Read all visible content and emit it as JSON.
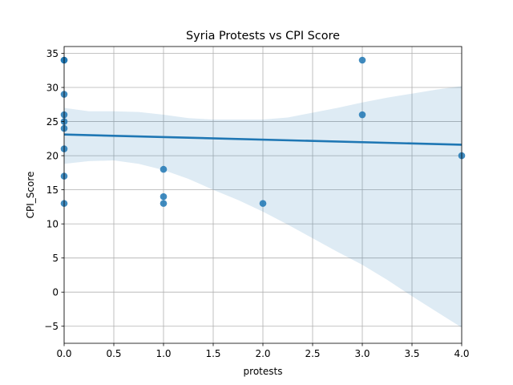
{
  "chart_data": {
    "type": "scatter",
    "title": "Syria Protests vs CPI Score",
    "xlabel": "protests",
    "ylabel": "CPI_Score",
    "xlim": [
      0,
      4
    ],
    "ylim": [
      -7.5,
      36
    ],
    "xticks": [
      0.0,
      0.5,
      1.0,
      1.5,
      2.0,
      2.5,
      3.0,
      3.5,
      4.0
    ],
    "xtick_labels": [
      "0.0",
      "0.5",
      "1.0",
      "1.5",
      "2.0",
      "2.5",
      "3.0",
      "3.5",
      "4.0"
    ],
    "yticks": [
      -5,
      0,
      5,
      10,
      15,
      20,
      25,
      30,
      35
    ],
    "ytick_labels": [
      "−5",
      "0",
      "5",
      "10",
      "15",
      "20",
      "25",
      "30",
      "35"
    ],
    "grid": true,
    "points": [
      {
        "x": 0,
        "y": 34
      },
      {
        "x": 0,
        "y": 34
      },
      {
        "x": 0,
        "y": 29
      },
      {
        "x": 0,
        "y": 26
      },
      {
        "x": 0,
        "y": 25
      },
      {
        "x": 0,
        "y": 24
      },
      {
        "x": 0,
        "y": 21
      },
      {
        "x": 0,
        "y": 17
      },
      {
        "x": 0,
        "y": 13
      },
      {
        "x": 1,
        "y": 18
      },
      {
        "x": 1,
        "y": 14
      },
      {
        "x": 1,
        "y": 13
      },
      {
        "x": 2,
        "y": 13
      },
      {
        "x": 3,
        "y": 34
      },
      {
        "x": 3,
        "y": 26
      },
      {
        "x": 4,
        "y": 20
      }
    ],
    "regression": {
      "x": [
        0,
        4
      ],
      "y": [
        23.1,
        21.6
      ]
    },
    "confidence_band": {
      "x": [
        0,
        0.25,
        0.5,
        0.75,
        1.0,
        1.25,
        1.5,
        1.75,
        2.0,
        2.25,
        2.5,
        2.75,
        3.0,
        3.25,
        3.5,
        3.75,
        4.0
      ],
      "upper": [
        27,
        26.5,
        26.5,
        26.4,
        26.0,
        25.5,
        25.3,
        25.3,
        25.3,
        25.6,
        26.3,
        27.0,
        27.8,
        28.5,
        29.1,
        29.7,
        30.2
      ],
      "lower": [
        18.8,
        19.2,
        19.3,
        18.8,
        17.9,
        16.6,
        15.0,
        13.5,
        11.8,
        9.9,
        7.9,
        5.9,
        4.0,
        1.8,
        -0.6,
        -2.9,
        -5.2
      ]
    },
    "colors": {
      "points": "#1f77b4",
      "line": "#1f77b4",
      "band": "#1f77b4",
      "grid": "#b0b0b0"
    }
  }
}
